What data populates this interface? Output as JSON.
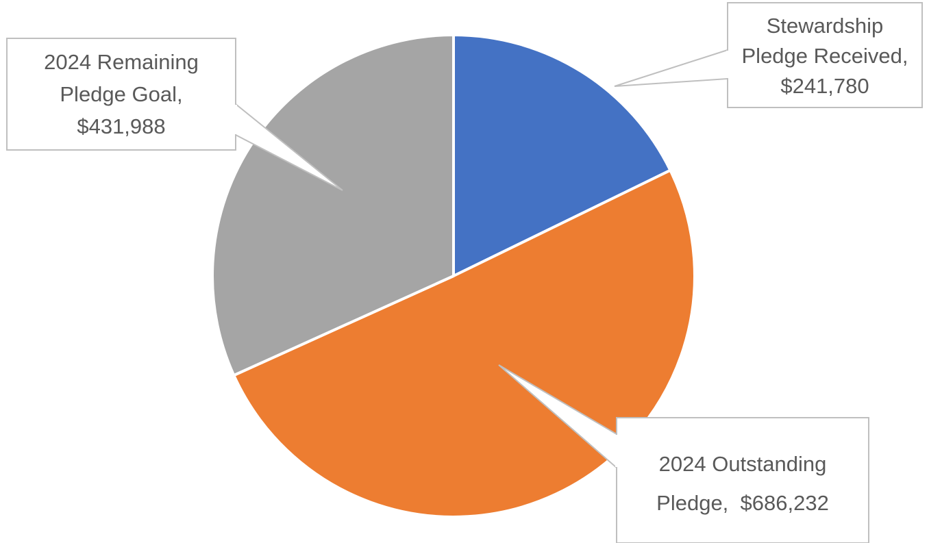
{
  "chart_data": {
    "type": "pie",
    "title": "",
    "start_angle_deg": 0,
    "direction": "clockwise",
    "legend": "none",
    "slices": [
      {
        "label": "Stewardship Pledge Received",
        "value": 241780,
        "value_text": "$241,780",
        "color": "#4472C4",
        "data_label_lines": [
          "Stewardship",
          "Pledge Received,",
          "$241,780"
        ]
      },
      {
        "label": "2024 Outstanding Pledge",
        "value": 686232,
        "value_text": "$686,232",
        "color": "#ED7D31",
        "data_label_lines": [
          "2024 Outstanding",
          "Pledge,  $686,232"
        ]
      },
      {
        "label": "2024 Remaining Pledge Goal",
        "value": 431988,
        "value_text": "$431,988",
        "color": "#A5A5A5",
        "data_label_lines": [
          "2024 Remaining",
          "Pledge Goal,",
          "$431,988"
        ]
      }
    ],
    "callout_style": {
      "fill": "#ffffff",
      "border": "#BFBFBF",
      "text_color": "#595959"
    }
  }
}
